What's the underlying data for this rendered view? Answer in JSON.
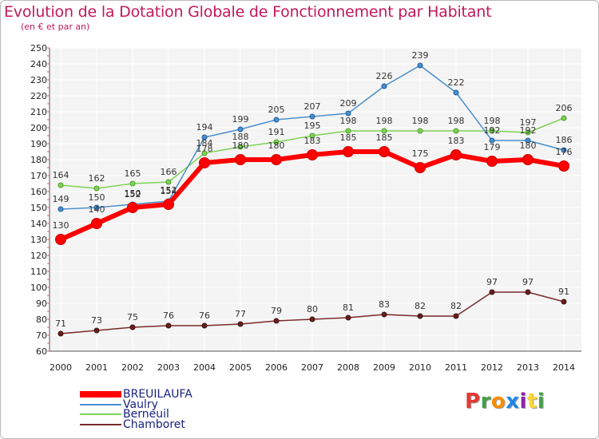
{
  "page": {
    "title": "Evolution de la Dotation Globale de Fonctionnement par Habitant",
    "subtitle": "(en € et par an)"
  },
  "logo": {
    "text": "Proxiti",
    "colors": [
      "#e53935",
      "#43a047",
      "#fb8c00",
      "#1e88e5",
      "#8e24aa",
      "#fdd835",
      "#43a047"
    ]
  },
  "chart_data": {
    "type": "line",
    "title": "Evolution de la Dotation Globale de Fonctionnement par Habitant",
    "subtitle": "(en € et par an)",
    "xlabel": "",
    "ylabel": "",
    "x": [
      "2000",
      "2001",
      "2002",
      "2003",
      "2004",
      "2005",
      "2006",
      "2007",
      "2008",
      "2009",
      "2010",
      "2011",
      "2012",
      "2013",
      "2014"
    ],
    "ylim": [
      60,
      250
    ],
    "yticks": [
      60,
      70,
      80,
      90,
      100,
      110,
      120,
      130,
      140,
      150,
      160,
      170,
      180,
      190,
      200,
      210,
      220,
      230,
      240,
      250
    ],
    "grid": true,
    "legend_position": "bottom-left",
    "series": [
      {
        "name": "BREUILAUFA",
        "color": "#ff0000",
        "values": [
          130,
          140,
          150,
          152,
          178,
          180,
          180,
          183,
          185,
          185,
          175,
          183,
          179,
          180,
          176
        ]
      },
      {
        "name": "Vaulry",
        "color": "#4a8fcc",
        "values": [
          149,
          150,
          152,
          154,
          194,
          199,
          205,
          207,
          209,
          226,
          239,
          222,
          192,
          192,
          186
        ]
      },
      {
        "name": "Berneuil",
        "color": "#7fd354",
        "values": [
          164,
          162,
          165,
          166,
          184,
          188,
          191,
          195,
          198,
          198,
          198,
          198,
          198,
          197,
          206
        ]
      },
      {
        "name": "Chamboret",
        "color": "#7a2a2a",
        "values": [
          71,
          73,
          75,
          76,
          76,
          77,
          79,
          80,
          81,
          83,
          82,
          82,
          97,
          97,
          91
        ]
      }
    ]
  }
}
